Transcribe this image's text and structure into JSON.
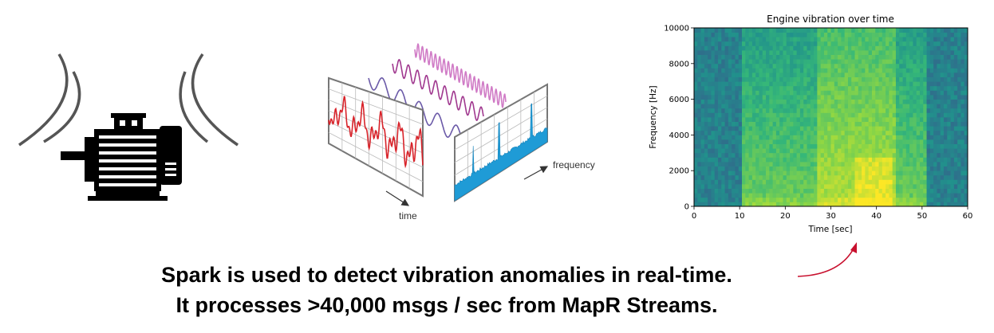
{
  "fourier": {
    "time_label": "time",
    "frequency_label": "frequency"
  },
  "spectrogram": {
    "title": "Engine vibration over time",
    "xlabel": "Time [sec]",
    "ylabel": "Frequency [Hz]",
    "x_ticks": [
      "0",
      "10",
      "20",
      "30",
      "40",
      "50",
      "60"
    ],
    "y_ticks": [
      "0",
      "2000",
      "4000",
      "6000",
      "8000",
      "10000"
    ]
  },
  "chart_data": {
    "type": "heatmap",
    "title": "Engine vibration over time",
    "xlabel": "Time [sec]",
    "ylabel": "Frequency [Hz]",
    "xlim": [
      0,
      60
    ],
    "ylim": [
      0,
      10000
    ],
    "x_ticks": [
      0,
      10,
      20,
      30,
      40,
      50,
      60
    ],
    "y_ticks": [
      0,
      2000,
      4000,
      6000,
      8000,
      10000
    ],
    "colormap": "viridis",
    "segments": [
      {
        "t_start": 0,
        "t_end": 10.5,
        "level": "low"
      },
      {
        "t_start": 10.5,
        "t_end": 27,
        "level": "medium"
      },
      {
        "t_start": 27,
        "t_end": 44,
        "level": "high"
      },
      {
        "t_start": 44,
        "t_end": 51,
        "level": "medium"
      },
      {
        "t_start": 51,
        "t_end": 60,
        "level": "low"
      }
    ]
  },
  "caption": {
    "line1": "Spark is used to detect vibration anomalies in real-time.",
    "line2": "It processes >40,000 msgs / sec from MapR Streams."
  },
  "colors": {
    "arrow": "#c8102e",
    "time_wave": "#d8232a",
    "spectrum_fill": "#1f9bd6",
    "viridis_low": "#2a788e",
    "viridis_high": "#dde318"
  }
}
